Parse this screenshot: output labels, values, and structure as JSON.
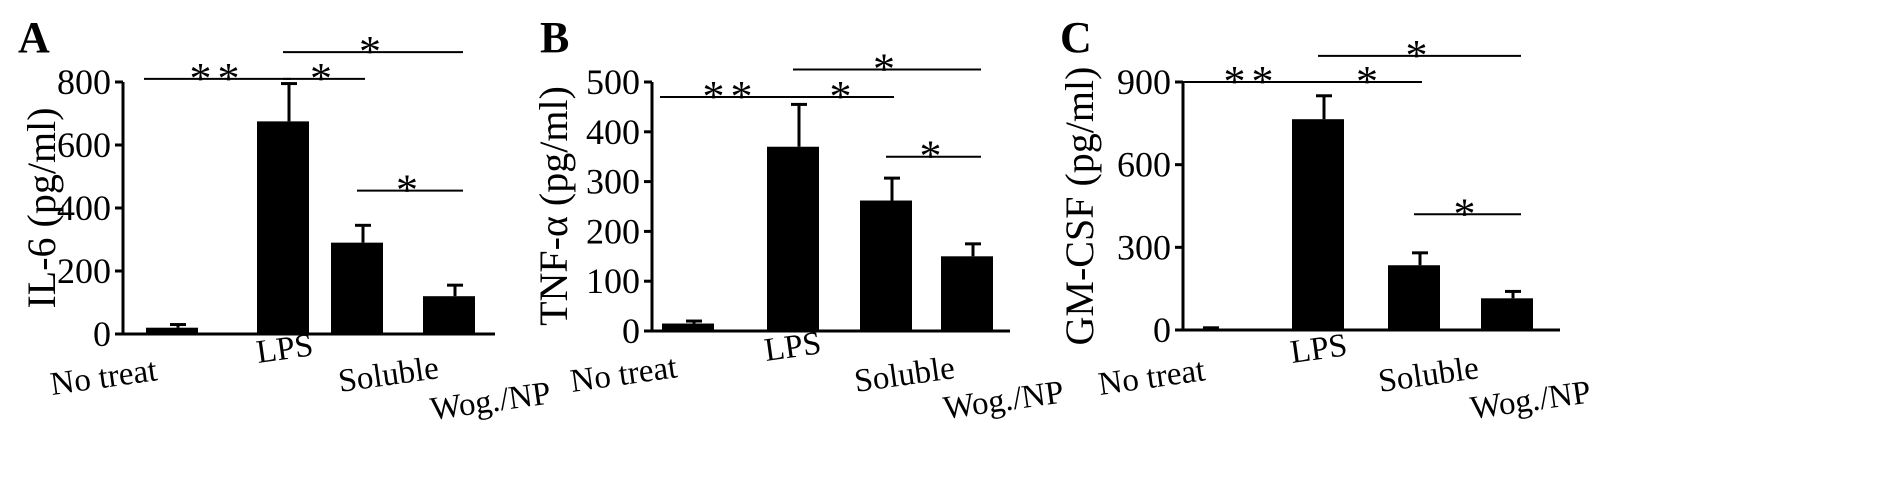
{
  "chart_data": [
    {
      "panel": "A",
      "type": "bar",
      "categories": [
        "No treat",
        "LPS",
        "Soluble",
        "Wog./NP"
      ],
      "values": [
        20,
        675,
        290,
        120
      ],
      "errors": [
        10,
        120,
        55,
        35
      ],
      "ylabel": "IL-6 (pg/ml)",
      "ylim": [
        0,
        800
      ],
      "yticks": [
        0,
        200,
        400,
        600,
        800
      ],
      "bar_color": "#000000",
      "significance": [
        {
          "from": 0,
          "to": 1,
          "label": "**",
          "y": 810
        },
        {
          "from": 1,
          "to": 2,
          "label": "*",
          "y": 810
        },
        {
          "from": 1,
          "to": 3,
          "label": "*",
          "y": 895
        },
        {
          "from": 2,
          "to": 3,
          "label": "*",
          "y": 455
        }
      ]
    },
    {
      "panel": "B",
      "type": "bar",
      "categories": [
        "No treat",
        "LPS",
        "Soluble",
        "Wog./NP"
      ],
      "values": [
        15,
        370,
        262,
        150
      ],
      "errors": [
        5,
        85,
        45,
        25
      ],
      "ylabel": "TNF-α (pg/ml)",
      "ylim": [
        0,
        500
      ],
      "yticks": [
        0,
        100,
        200,
        300,
        400,
        500
      ],
      "bar_color": "#000000",
      "significance": [
        {
          "from": 0,
          "to": 1,
          "label": "**",
          "y": 470
        },
        {
          "from": 1,
          "to": 2,
          "label": "*",
          "y": 470
        },
        {
          "from": 1,
          "to": 3,
          "label": "*",
          "y": 525
        },
        {
          "from": 2,
          "to": 3,
          "label": "*",
          "y": 350
        }
      ]
    },
    {
      "panel": "C",
      "type": "bar",
      "categories": [
        "No treat",
        "LPS",
        "Soluble",
        "Wog./NP"
      ],
      "values": [
        5,
        765,
        235,
        115
      ],
      "errors": [
        3,
        85,
        45,
        25
      ],
      "ylabel": "GM-CSF (pg/ml)",
      "ylim": [
        0,
        900
      ],
      "yticks": [
        0,
        300,
        600,
        900
      ],
      "bar_color": "#000000",
      "significance": [
        {
          "from": 0,
          "to": 1,
          "label": "**",
          "y": 900
        },
        {
          "from": 1,
          "to": 2,
          "label": "*",
          "y": 900
        },
        {
          "from": 1,
          "to": 3,
          "label": "*",
          "y": 995
        },
        {
          "from": 2,
          "to": 3,
          "label": "*",
          "y": 420
        }
      ]
    }
  ]
}
